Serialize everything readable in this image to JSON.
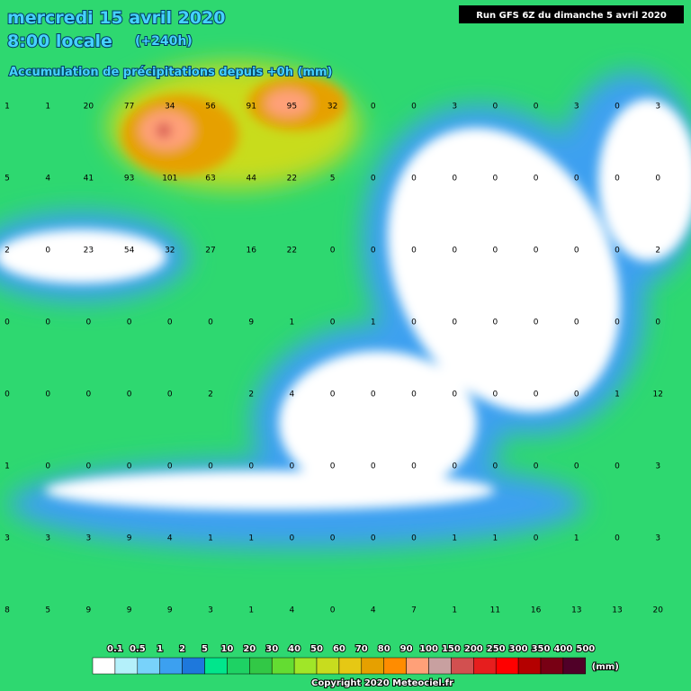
{
  "header": {
    "date": "mercredi 15 avril 2020",
    "time": "8:00 locale",
    "lead": "(+240h)",
    "subtitle": "Accumulation de précipitations depuis +0h (mm)",
    "run": "Run GFS 6Z du dimanche 5 avril 2020"
  },
  "grid_values": [
    [
      1,
      1,
      20,
      77,
      34,
      56,
      91,
      95,
      32,
      0,
      0,
      3,
      0,
      0,
      3,
      0,
      3
    ],
    [
      5,
      4,
      41,
      93,
      101,
      63,
      44,
      22,
      5,
      0,
      0,
      0,
      0,
      0,
      0,
      0,
      0
    ],
    [
      2,
      0,
      23,
      54,
      32,
      27,
      16,
      22,
      0,
      0,
      0,
      0,
      0,
      0,
      0,
      0,
      2
    ],
    [
      0,
      0,
      0,
      0,
      0,
      0,
      9,
      1,
      0,
      1,
      0,
      0,
      0,
      0,
      0,
      0,
      0
    ],
    [
      0,
      0,
      0,
      0,
      0,
      2,
      2,
      4,
      0,
      0,
      0,
      0,
      0,
      0,
      0,
      1,
      12
    ],
    [
      1,
      0,
      0,
      0,
      0,
      0,
      0,
      0,
      0,
      0,
      0,
      0,
      0,
      0,
      0,
      0,
      3
    ],
    [
      3,
      3,
      3,
      9,
      4,
      1,
      1,
      0,
      0,
      0,
      0,
      1,
      1,
      0,
      1,
      0,
      3
    ],
    [
      8,
      5,
      9,
      9,
      9,
      3,
      1,
      4,
      0,
      4,
      7,
      1,
      11,
      16,
      13,
      13,
      20
    ]
  ],
  "legend": {
    "items": [
      {
        "label": "0.1",
        "color": "#ffffff"
      },
      {
        "label": "0.5",
        "color": "#b4f0fa"
      },
      {
        "label": "1",
        "color": "#78d2fa"
      },
      {
        "label": "2",
        "color": "#3ca0f0"
      },
      {
        "label": "5",
        "color": "#1e78dc"
      },
      {
        "label": "10",
        "color": "#00e68c"
      },
      {
        "label": "20",
        "color": "#1ed264"
      },
      {
        "label": "30",
        "color": "#32c846"
      },
      {
        "label": "40",
        "color": "#64dc32"
      },
      {
        "label": "50",
        "color": "#a0e628"
      },
      {
        "label": "60",
        "color": "#c8dc1e"
      },
      {
        "label": "70",
        "color": "#e6c814"
      },
      {
        "label": "80",
        "color": "#e6a000"
      },
      {
        "label": "90",
        "color": "#ff8c00"
      },
      {
        "label": "100",
        "color": "#ffa078"
      },
      {
        "label": "150",
        "color": "#c8a0a0"
      },
      {
        "label": "200",
        "color": "#d25050"
      },
      {
        "label": "250",
        "color": "#e61e1e"
      },
      {
        "label": "300",
        "color": "#ff0000"
      },
      {
        "label": "350",
        "color": "#b40000"
      },
      {
        "label": "400",
        "color": "#780014"
      },
      {
        "label": "500",
        "color": "#500028"
      }
    ],
    "unit": "(mm)"
  },
  "footer": {
    "copyright": "Copyright 2020 Meteociel.fr"
  }
}
